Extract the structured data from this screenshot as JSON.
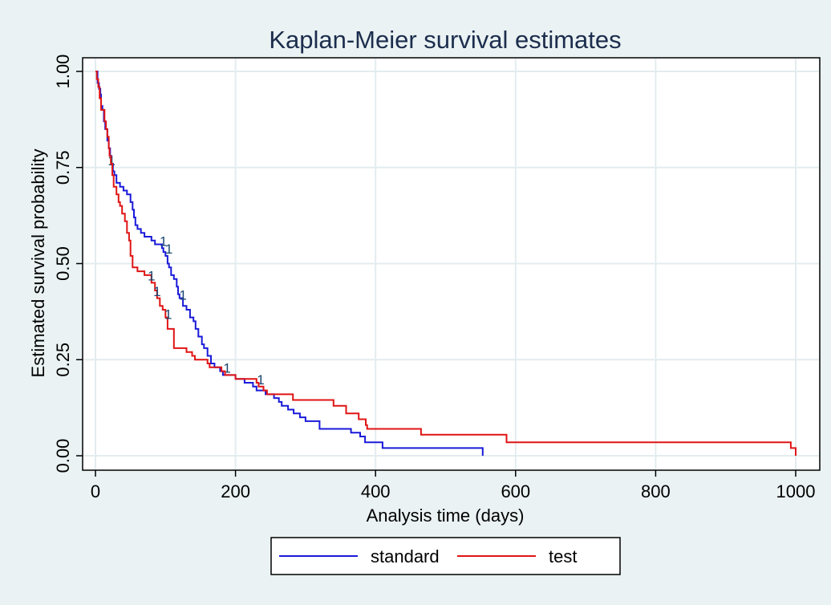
{
  "chart_data": {
    "type": "line",
    "title": "Kaplan-Meier survival estimates",
    "xlabel": "Analysis time (days)",
    "ylabel": "Estimated survival probability",
    "xlim": [
      0,
      1000
    ],
    "ylim": [
      0,
      1
    ],
    "xticks": [
      "0",
      "200",
      "400",
      "600",
      "800",
      "1000"
    ],
    "yticks": [
      "0.00",
      "0.25",
      "0.50",
      "0.75",
      "1.00"
    ],
    "grid": true,
    "legend_position": "bottom",
    "censor_label": "1",
    "series": [
      {
        "name": "standard",
        "color": "#1a1ad9",
        "points": [
          [
            0,
            1.0
          ],
          [
            3,
            0.97
          ],
          [
            5,
            0.955
          ],
          [
            7,
            0.94
          ],
          [
            8,
            0.91
          ],
          [
            10,
            0.9
          ],
          [
            12,
            0.87
          ],
          [
            14,
            0.85
          ],
          [
            17,
            0.82
          ],
          [
            19,
            0.8
          ],
          [
            21,
            0.78
          ],
          [
            23,
            0.76
          ],
          [
            25,
            0.74
          ],
          [
            27,
            0.73
          ],
          [
            30,
            0.71
          ],
          [
            35,
            0.7
          ],
          [
            40,
            0.69
          ],
          [
            45,
            0.68
          ],
          [
            50,
            0.66
          ],
          [
            53,
            0.64
          ],
          [
            55,
            0.62
          ],
          [
            57,
            0.6
          ],
          [
            60,
            0.59
          ],
          [
            65,
            0.58
          ],
          [
            70,
            0.57
          ],
          [
            80,
            0.56
          ],
          [
            85,
            0.55
          ],
          [
            95,
            0.54
          ],
          [
            97,
            0.53
          ],
          [
            100,
            0.52
          ],
          [
            103,
            0.5
          ],
          [
            105,
            0.49
          ],
          [
            108,
            0.47
          ],
          [
            112,
            0.46
          ],
          [
            116,
            0.44
          ],
          [
            118,
            0.42
          ],
          [
            120,
            0.41
          ],
          [
            125,
            0.39
          ],
          [
            130,
            0.38
          ],
          [
            135,
            0.36
          ],
          [
            140,
            0.35
          ],
          [
            143,
            0.33
          ],
          [
            147,
            0.31
          ],
          [
            152,
            0.29
          ],
          [
            155,
            0.28
          ],
          [
            160,
            0.26
          ],
          [
            165,
            0.24
          ],
          [
            170,
            0.23
          ],
          [
            178,
            0.22
          ],
          [
            182,
            0.21
          ],
          [
            193,
            0.21
          ],
          [
            200,
            0.2
          ],
          [
            213,
            0.19
          ],
          [
            225,
            0.18
          ],
          [
            230,
            0.17
          ],
          [
            243,
            0.16
          ],
          [
            255,
            0.15
          ],
          [
            262,
            0.14
          ],
          [
            266,
            0.13
          ],
          [
            275,
            0.12
          ],
          [
            283,
            0.11
          ],
          [
            292,
            0.1
          ],
          [
            300,
            0.09
          ],
          [
            320,
            0.07
          ],
          [
            365,
            0.06
          ],
          [
            378,
            0.05
          ],
          [
            385,
            0.035
          ],
          [
            410,
            0.02
          ],
          [
            460,
            0.02
          ],
          [
            553,
            0.017
          ],
          [
            553,
            0.0
          ]
        ],
        "censored_at": [
          [
            23,
            0.76
          ],
          [
            97,
            0.55
          ],
          [
            105,
            0.53
          ],
          [
            125,
            0.41
          ],
          [
            188,
            0.22
          ],
          [
            236,
            0.19
          ]
        ]
      },
      {
        "name": "test",
        "color": "#e01414",
        "points": [
          [
            0,
            1.0
          ],
          [
            2,
            0.98
          ],
          [
            4,
            0.96
          ],
          [
            6,
            0.93
          ],
          [
            8,
            0.9
          ],
          [
            10,
            0.9
          ],
          [
            13,
            0.87
          ],
          [
            15,
            0.85
          ],
          [
            17,
            0.83
          ],
          [
            19,
            0.8
          ],
          [
            20,
            0.78
          ],
          [
            22,
            0.76
          ],
          [
            24,
            0.73
          ],
          [
            26,
            0.7
          ],
          [
            30,
            0.68
          ],
          [
            33,
            0.66
          ],
          [
            35,
            0.65
          ],
          [
            38,
            0.63
          ],
          [
            42,
            0.61
          ],
          [
            45,
            0.58
          ],
          [
            48,
            0.56
          ],
          [
            50,
            0.52
          ],
          [
            53,
            0.49
          ],
          [
            60,
            0.48
          ],
          [
            70,
            0.47
          ],
          [
            80,
            0.45
          ],
          [
            85,
            0.43
          ],
          [
            88,
            0.41
          ],
          [
            92,
            0.39
          ],
          [
            96,
            0.38
          ],
          [
            100,
            0.36
          ],
          [
            103,
            0.33
          ],
          [
            112,
            0.28
          ],
          [
            120,
            0.28
          ],
          [
            130,
            0.27
          ],
          [
            138,
            0.26
          ],
          [
            142,
            0.25
          ],
          [
            160,
            0.24
          ],
          [
            163,
            0.23
          ],
          [
            180,
            0.22
          ],
          [
            185,
            0.21
          ],
          [
            200,
            0.2
          ],
          [
            230,
            0.19
          ],
          [
            233,
            0.18
          ],
          [
            240,
            0.17
          ],
          [
            245,
            0.16
          ],
          [
            282,
            0.145
          ],
          [
            340,
            0.13
          ],
          [
            358,
            0.11
          ],
          [
            376,
            0.095
          ],
          [
            386,
            0.08
          ],
          [
            388,
            0.07
          ],
          [
            465,
            0.055
          ],
          [
            530,
            0.055
          ],
          [
            587,
            0.035
          ],
          [
            990,
            0.035
          ],
          [
            993,
            0.02
          ],
          [
            1000,
            0.0
          ]
        ],
        "censored_at": [
          [
            80,
            0.46
          ],
          [
            88,
            0.42
          ],
          [
            104,
            0.36
          ]
        ]
      }
    ]
  }
}
